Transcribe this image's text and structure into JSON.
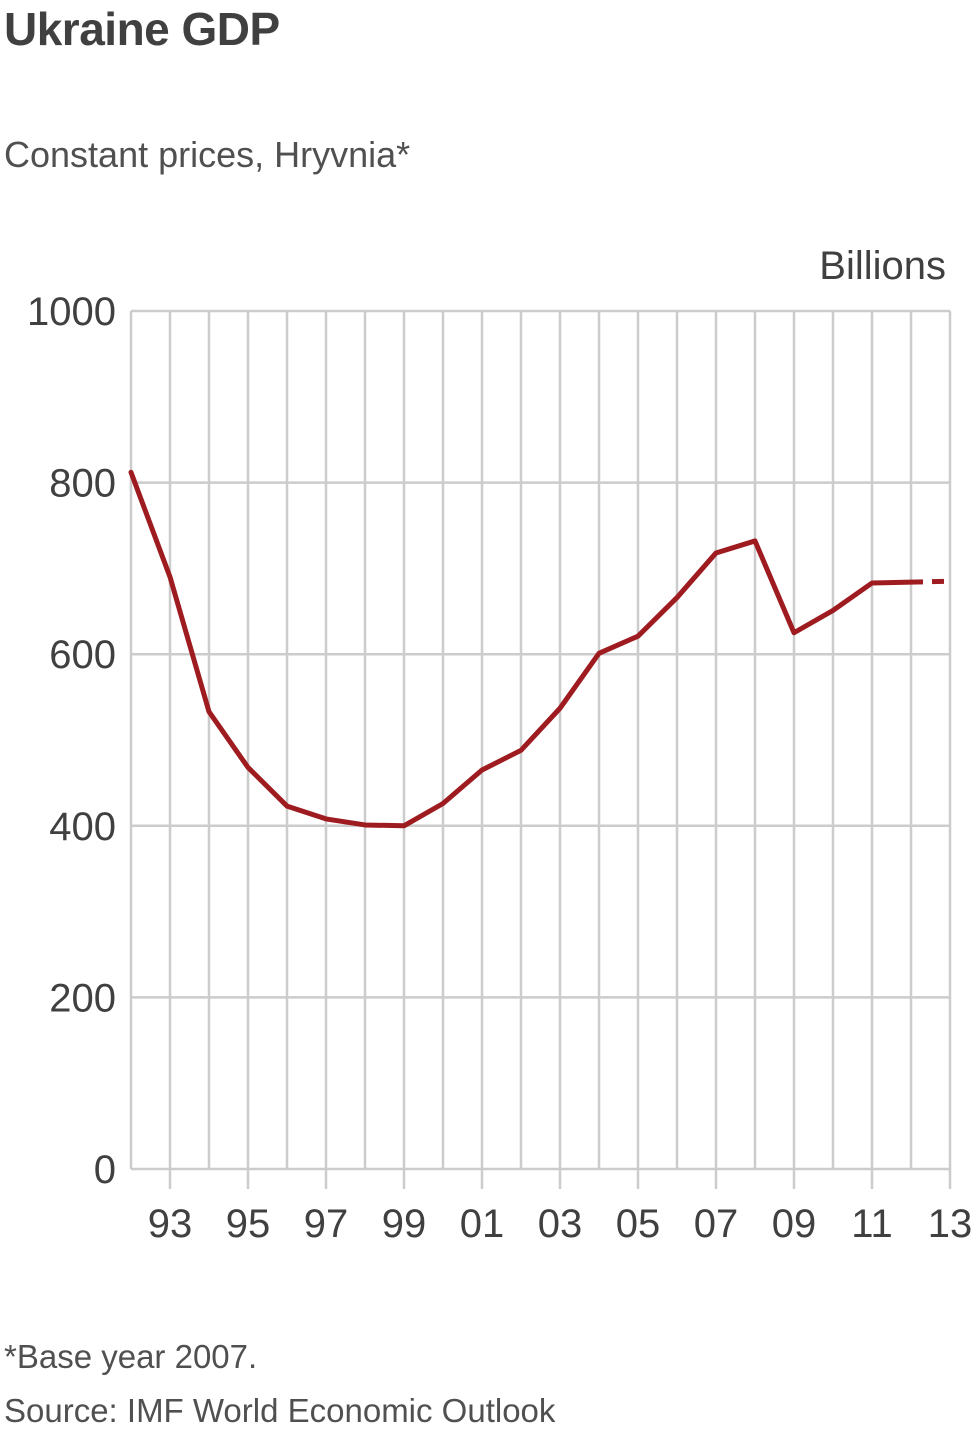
{
  "header": {
    "title": "Ukraine GDP",
    "subtitle": "Constant prices, Hryvnia*",
    "unit_label": "Billions"
  },
  "footer": {
    "footnote": "*Base year 2007.",
    "source": "Source: IMF World Economic Outlook"
  },
  "colors": {
    "line": "#9e1b20",
    "grid": "#cccccc",
    "text": "#404040"
  },
  "chart_data": {
    "type": "line",
    "title": "Ukraine GDP",
    "subtitle": "Constant prices, Hryvnia*",
    "xlabel": "",
    "ylabel": "Billions",
    "x": [
      1992,
      1993,
      1994,
      1995,
      1996,
      1997,
      1998,
      1999,
      2000,
      2001,
      2002,
      2003,
      2004,
      2005,
      2006,
      2007,
      2008,
      2009,
      2010,
      2011,
      2012,
      2013
    ],
    "series": [
      {
        "name": "GDP (constant prices, Hryvnia bn)",
        "values": [
          812,
          690,
          533,
          468,
          423,
          408,
          401,
          400,
          426,
          465,
          488,
          537,
          601,
          621,
          666,
          718,
          732,
          625,
          651,
          683,
          684,
          685
        ],
        "style": "solid until 2012, dashed 2012-2013 (forecast)"
      }
    ],
    "ylim": [
      0,
      1000
    ],
    "xlim": [
      1992,
      2013
    ],
    "yticks": [
      0,
      200,
      400,
      600,
      800,
      1000
    ],
    "xtick_labels": [
      "93",
      "95",
      "97",
      "99",
      "01",
      "03",
      "05",
      "07",
      "09",
      "11",
      "13"
    ],
    "xtick_years": [
      1993,
      1995,
      1997,
      1999,
      2001,
      2003,
      2005,
      2007,
      2009,
      2011,
      2013
    ],
    "grid": true,
    "annotations": [
      "*Base year 2007."
    ],
    "source": "Source: IMF World Economic Outlook"
  }
}
